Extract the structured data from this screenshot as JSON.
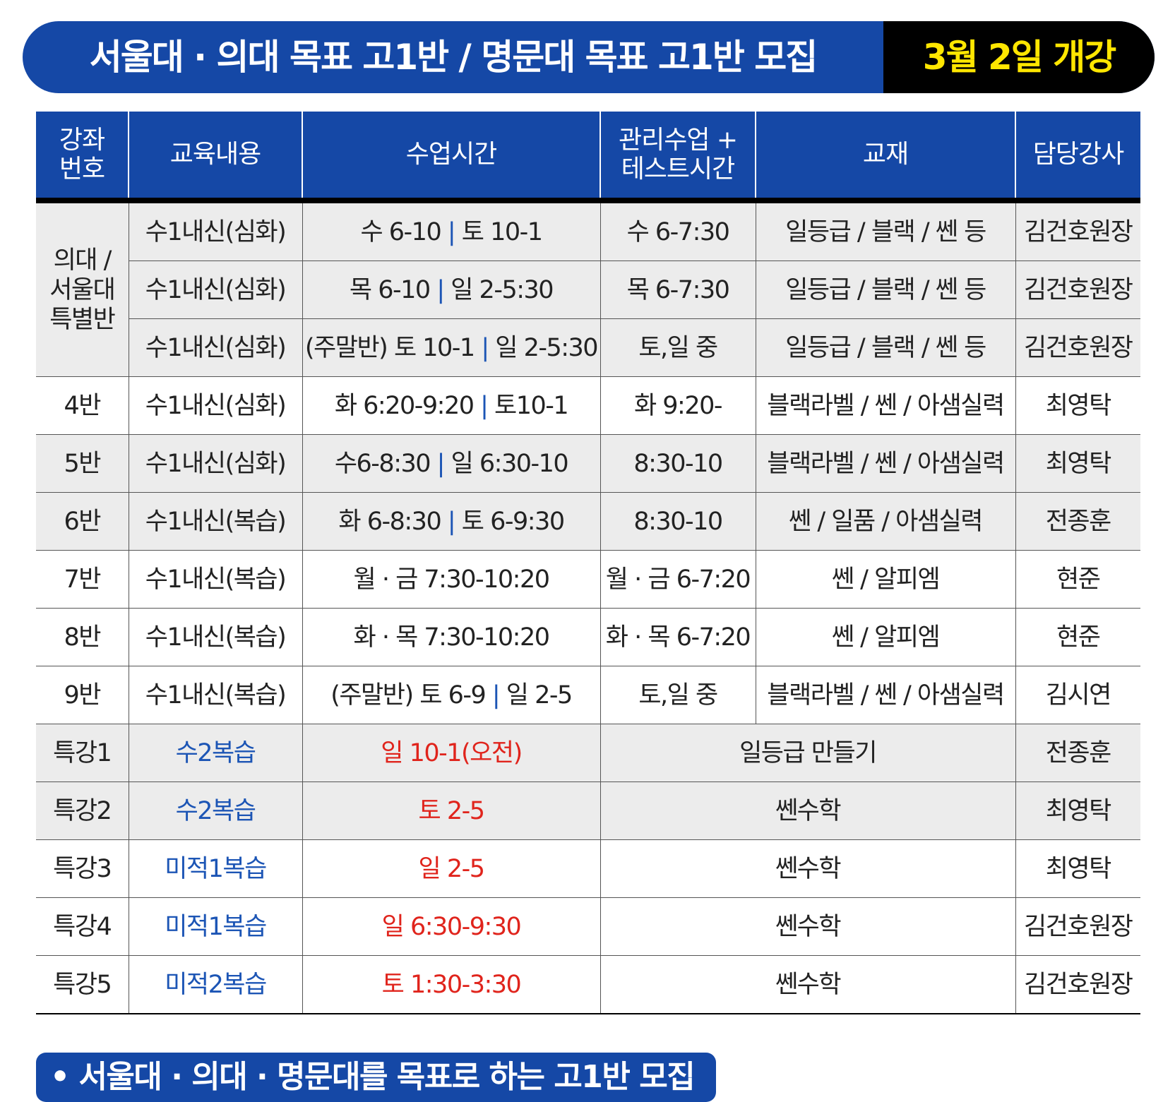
{
  "banner": {
    "title": "서울대 · 의대 목표 고1반 / 명문대 목표 고1반 모집",
    "date": "3월 2일 개강"
  },
  "table": {
    "header": [
      "강좌\n번호",
      "교육내용",
      "수업시간",
      "관리수업 +\n테스트시간",
      "교재",
      "담당강사"
    ],
    "rows": [
      {
        "no": "의대 /\n서울대\n특별반",
        "content": "수1내신(심화)",
        "time": "수 6-10 | 토 10-1",
        "manage": "수 6-7:30",
        "book": "일등급 / 블랙 / 쎈 등",
        "teacher": "김건호원장"
      },
      {
        "content": "수1내신(심화)",
        "time": "목 6-10 | 일 2-5:30",
        "manage": "목 6-7:30",
        "book": "일등급 / 블랙 / 쎈 등",
        "teacher": "김건호원장"
      },
      {
        "content": "수1내신(심화)",
        "time": "(주말반) 토 10-1 | 일 2-5:30",
        "manage": "토,일 중",
        "book": "일등급 / 블랙 / 쎈 등",
        "teacher": "김건호원장"
      },
      {
        "no": "4반",
        "content": "수1내신(심화)",
        "time": "화 6:20-9:20 | 토10-1",
        "manage": "화 9:20-",
        "book": "블랙라벨 / 쎈 / 아샘실력",
        "teacher": "최영탁"
      },
      {
        "no": "5반",
        "content": "수1내신(심화)",
        "time": "수6-8:30 | 일 6:30-10",
        "manage": "8:30-10",
        "book": "블랙라벨 / 쎈 / 아샘실력",
        "teacher": "최영탁"
      },
      {
        "no": "6반",
        "content": "수1내신(복습)",
        "time": "화 6-8:30 | 토 6-9:30",
        "manage": "8:30-10",
        "book": "쎈 / 일품 / 아샘실력",
        "teacher": "전종훈"
      },
      {
        "no": "7반",
        "content": "수1내신(복습)",
        "time": "월 · 금 7:30-10:20",
        "manage": "월 · 금 6-7:20",
        "book": "쎈 / 알피엠",
        "teacher": "현준"
      },
      {
        "no": "8반",
        "content": "수1내신(복습)",
        "time": "화 · 목 7:30-10:20",
        "manage": "화 · 목 6-7:20",
        "book": "쎈 / 알피엠",
        "teacher": "현준"
      },
      {
        "no": "9반",
        "content": "수1내신(복습)",
        "time": "(주말반) 토 6-9 | 일 2-5",
        "manage": "토,일 중",
        "book": "블랙라벨 / 쎈 / 아샘실력",
        "teacher": "김시연"
      },
      {
        "no": "특강1",
        "content": "수2복습",
        "time": "일 10-1(오전)",
        "book": "일등급 만들기",
        "teacher": "전종훈"
      },
      {
        "no": "특강2",
        "content": "수2복습",
        "time": "토 2-5",
        "book": "쎈수학",
        "teacher": "최영탁"
      },
      {
        "no": "특강3",
        "content": "미적1복습",
        "time": "일 2-5",
        "book": "쎈수학",
        "teacher": "최영탁"
      },
      {
        "no": "특강4",
        "content": "미적1복습",
        "time": "일 6:30-9:30",
        "book": "쎈수학",
        "teacher": "김건호원장"
      },
      {
        "no": "특강5",
        "content": "미적2복습",
        "time": "토 1:30-3:30",
        "book": "쎈수학",
        "teacher": "김건호원장"
      }
    ]
  },
  "footer": {
    "note": "• 서울대 · 의대 · 명문대를 목표로 하는 고1반 모집"
  }
}
